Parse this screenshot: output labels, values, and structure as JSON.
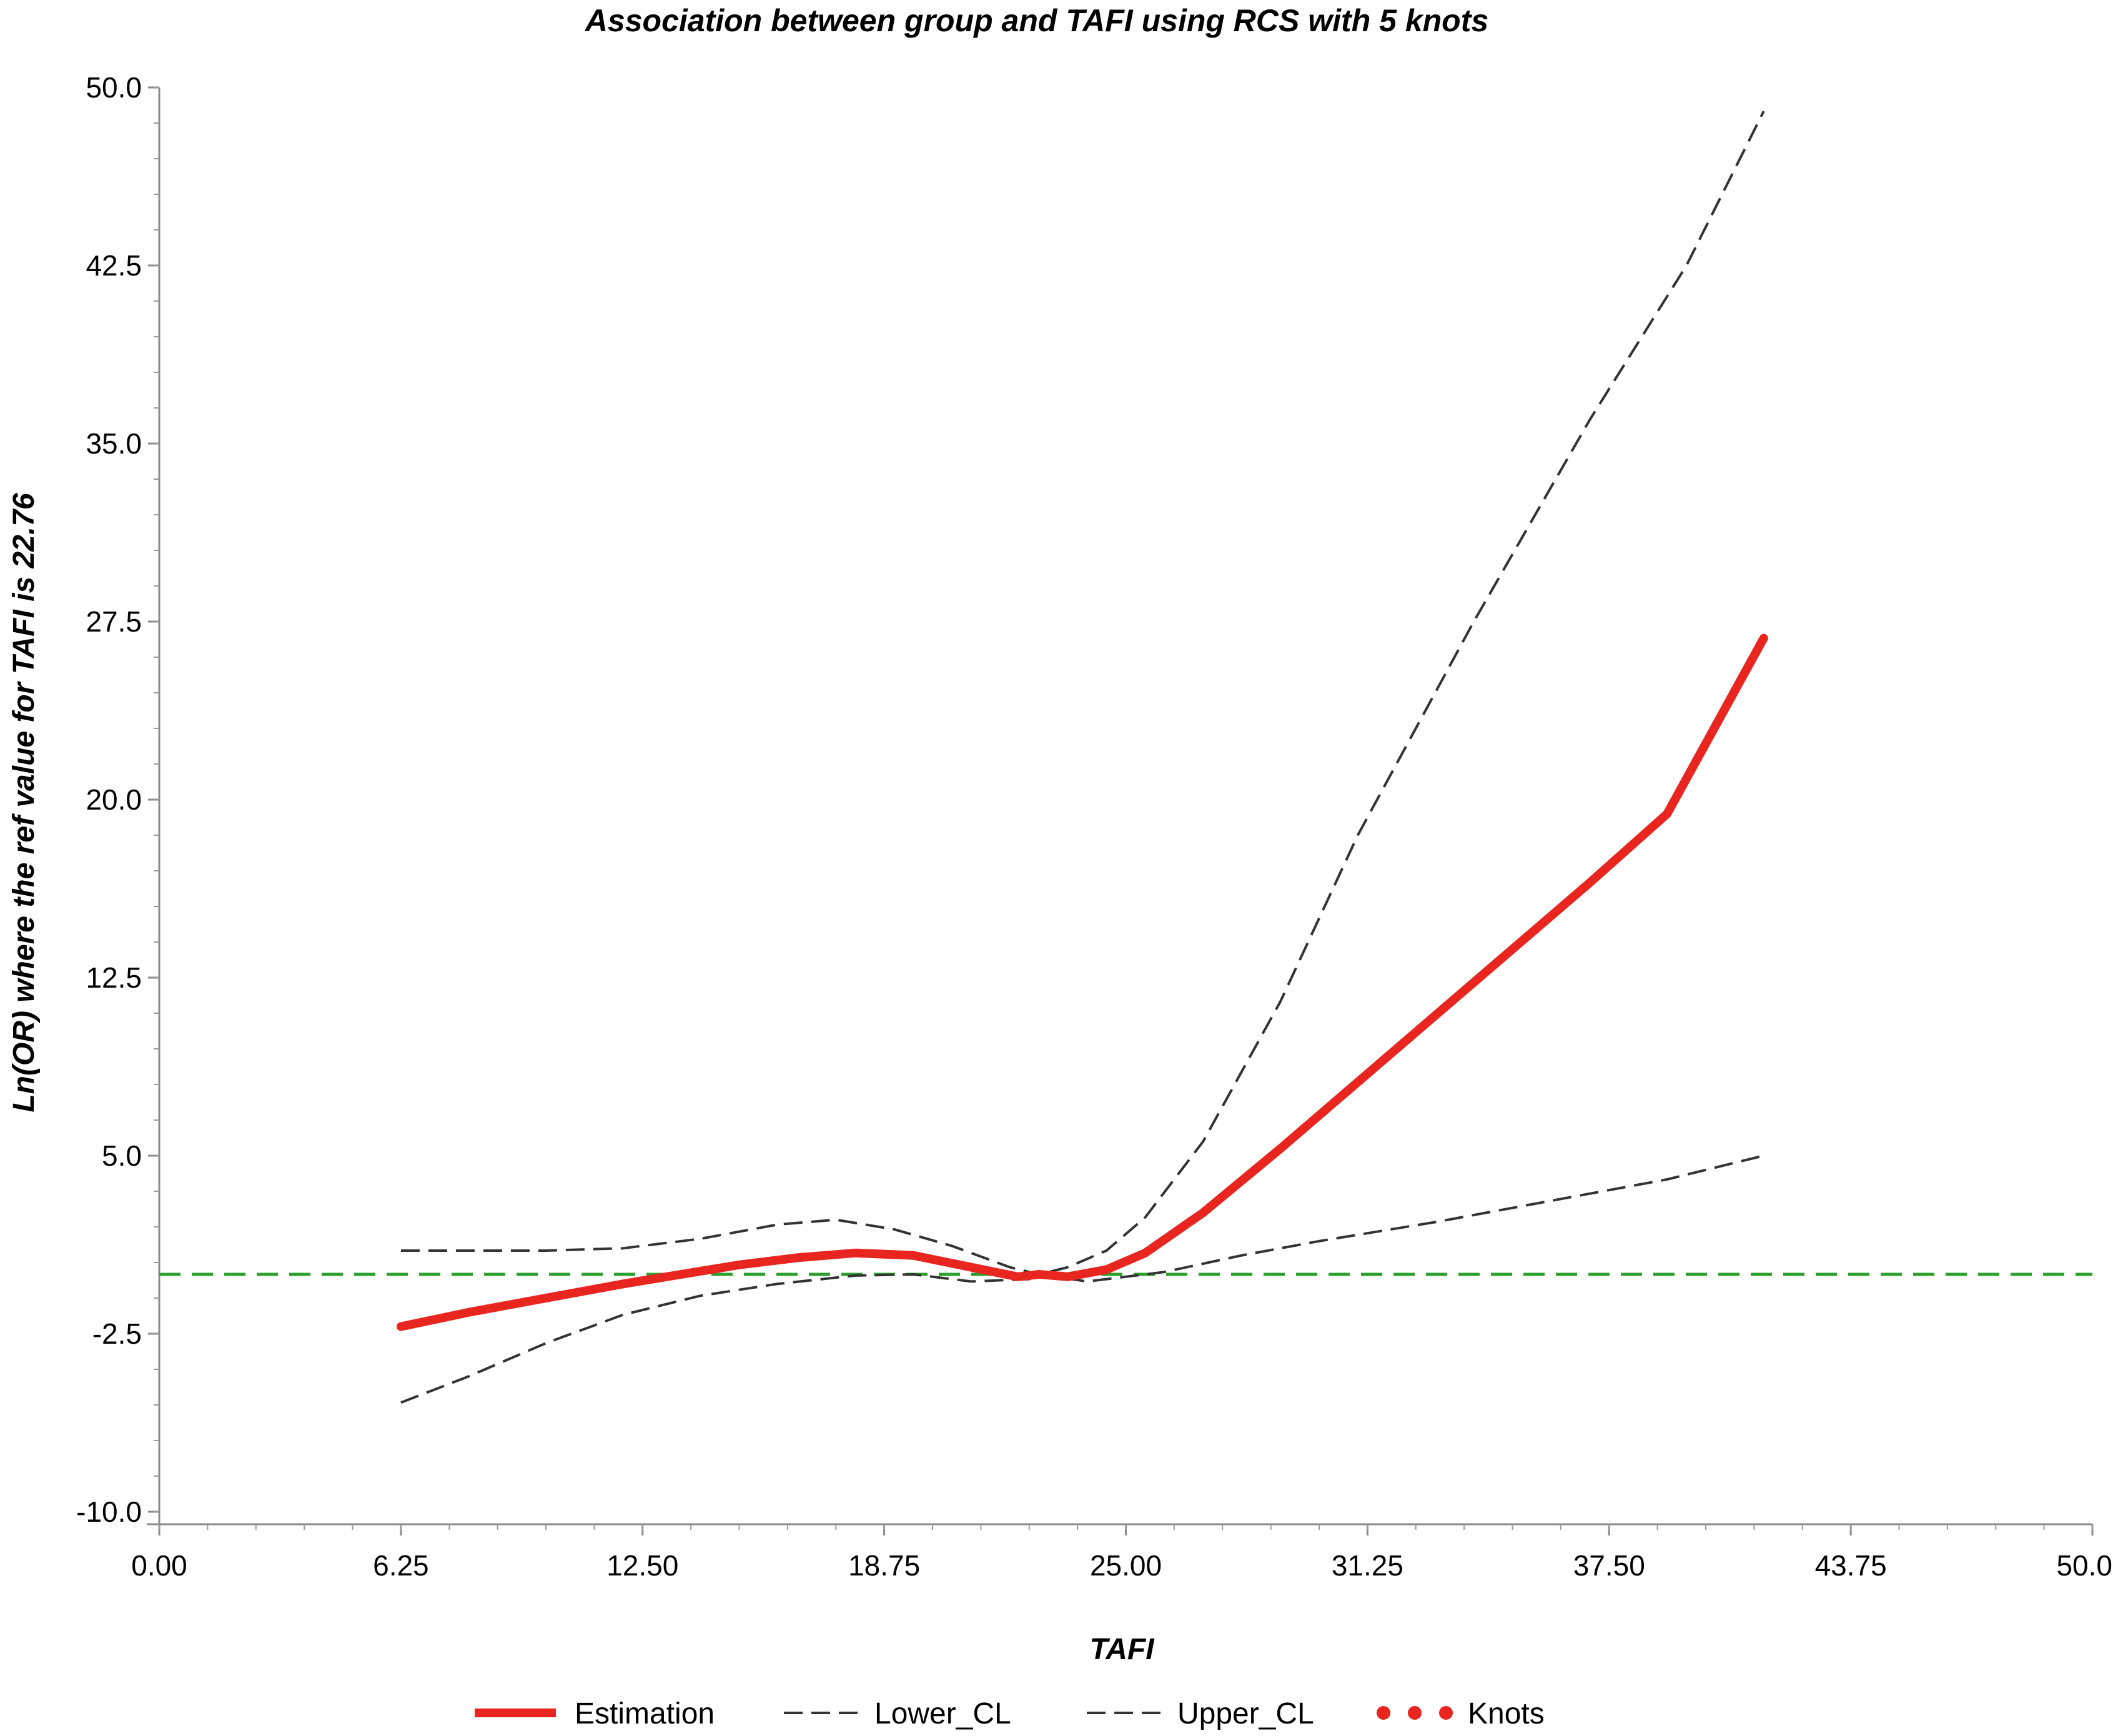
{
  "chart_data": {
    "type": "line",
    "title": "Association between group and TAFI using RCS with 5 knots",
    "xlabel": "TAFI",
    "ylabel": "Ln(OR) where the ref value for TAFI is 22.76",
    "xlim": [
      0,
      50
    ],
    "ylim": [
      -10,
      50
    ],
    "x_ticks": [
      "0.00",
      "6.25",
      "12.50",
      "18.75",
      "25.00",
      "31.25",
      "37.50",
      "43.75",
      "50.00"
    ],
    "y_ticks": [
      "-10.0",
      "-2.5",
      "5.0",
      "12.5",
      "20.0",
      "27.5",
      "35.0",
      "42.5",
      "50.0"
    ],
    "grid": false,
    "legend_position": "bottom",
    "reference_line": {
      "y": 0,
      "color": "#2ca02c",
      "style": "dashed"
    },
    "series": [
      {
        "name": "Estimation",
        "color": "#e8251f",
        "style": "solid",
        "x": [
          6.25,
          8,
          10,
          12,
          13.5,
          15,
          16.5,
          18,
          19.5,
          21,
          22.2,
          22.76,
          23.5,
          24.5,
          25.5,
          27,
          29,
          31,
          33,
          35,
          37,
          39,
          41.5
        ],
        "y": [
          -2.2,
          -1.6,
          -1.0,
          -0.4,
          0,
          0.4,
          0.7,
          0.9,
          0.8,
          0.3,
          -0.1,
          0,
          -0.1,
          0.2,
          0.9,
          2.6,
          5.3,
          8.1,
          10.9,
          13.7,
          16.5,
          19.4,
          26.8
        ]
      },
      {
        "name": "Lower_CL",
        "color": "#333333",
        "style": "dashed",
        "x": [
          6.25,
          8,
          10,
          12,
          14,
          16,
          18,
          19.5,
          21,
          22.5,
          22.76,
          24,
          26,
          28,
          30,
          33,
          36,
          39,
          41.5
        ],
        "y": [
          -5.4,
          -4.3,
          -2.9,
          -1.7,
          -0.9,
          -0.4,
          -0.05,
          0,
          -0.3,
          -0.2,
          0,
          -0.3,
          0.1,
          0.8,
          1.4,
          2.2,
          3.1,
          4.0,
          5.0
        ]
      },
      {
        "name": "Upper_CL",
        "color": "#333333",
        "style": "dashed",
        "x": [
          6.25,
          8,
          10,
          12,
          14,
          16,
          17.5,
          19,
          20.5,
          22,
          22.76,
          23.5,
          24.5,
          25.5,
          27,
          29,
          31,
          34,
          37,
          39.5,
          41.5
        ],
        "y": [
          1.0,
          1.0,
          1.0,
          1.1,
          1.5,
          2.1,
          2.3,
          1.9,
          1.2,
          0.3,
          0,
          0.3,
          1.0,
          2.4,
          5.6,
          11.5,
          18.5,
          27.5,
          36.0,
          42.5,
          49.0
        ]
      },
      {
        "name": "Knots",
        "color": "#e8251f",
        "style": "points",
        "x": [],
        "y": []
      }
    ]
  }
}
